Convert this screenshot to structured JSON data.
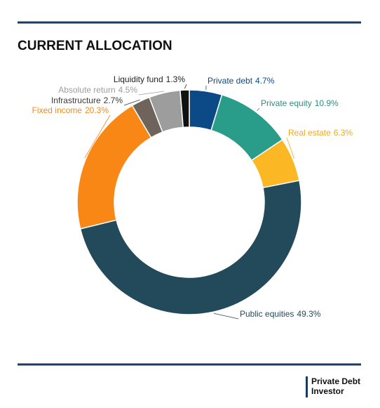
{
  "chart_data": {
    "type": "donut",
    "title": "CURRENT ALLOCATION",
    "categories": [
      "Private debt",
      "Private equity",
      "Real estate",
      "Public equities",
      "Fixed income",
      "Infrastructure",
      "Absolute return",
      "Liquidity fund"
    ],
    "values": [
      4.7,
      10.9,
      6.3,
      49.3,
      20.3,
      2.7,
      4.5,
      1.3
    ],
    "value_labels": [
      "4.7%",
      "10.9%",
      "6.3%",
      "49.3%",
      "20.3%",
      "2.7%",
      "4.5%",
      "1.3%"
    ],
    "colors": [
      "#0b4a86",
      "#2a9d8a",
      "#fbb824",
      "#234a5a",
      "#f98716",
      "#6f645b",
      "#9d9d9d",
      "#111111"
    ],
    "label_colors": [
      "#0b4a86",
      "#2a8f80",
      "#f5a814",
      "#234a5a",
      "#f98716",
      "#3a3a3a",
      "#9d9d9d",
      "#222222"
    ]
  },
  "logo": {
    "line1": "Private Debt",
    "line2": "Investor"
  }
}
